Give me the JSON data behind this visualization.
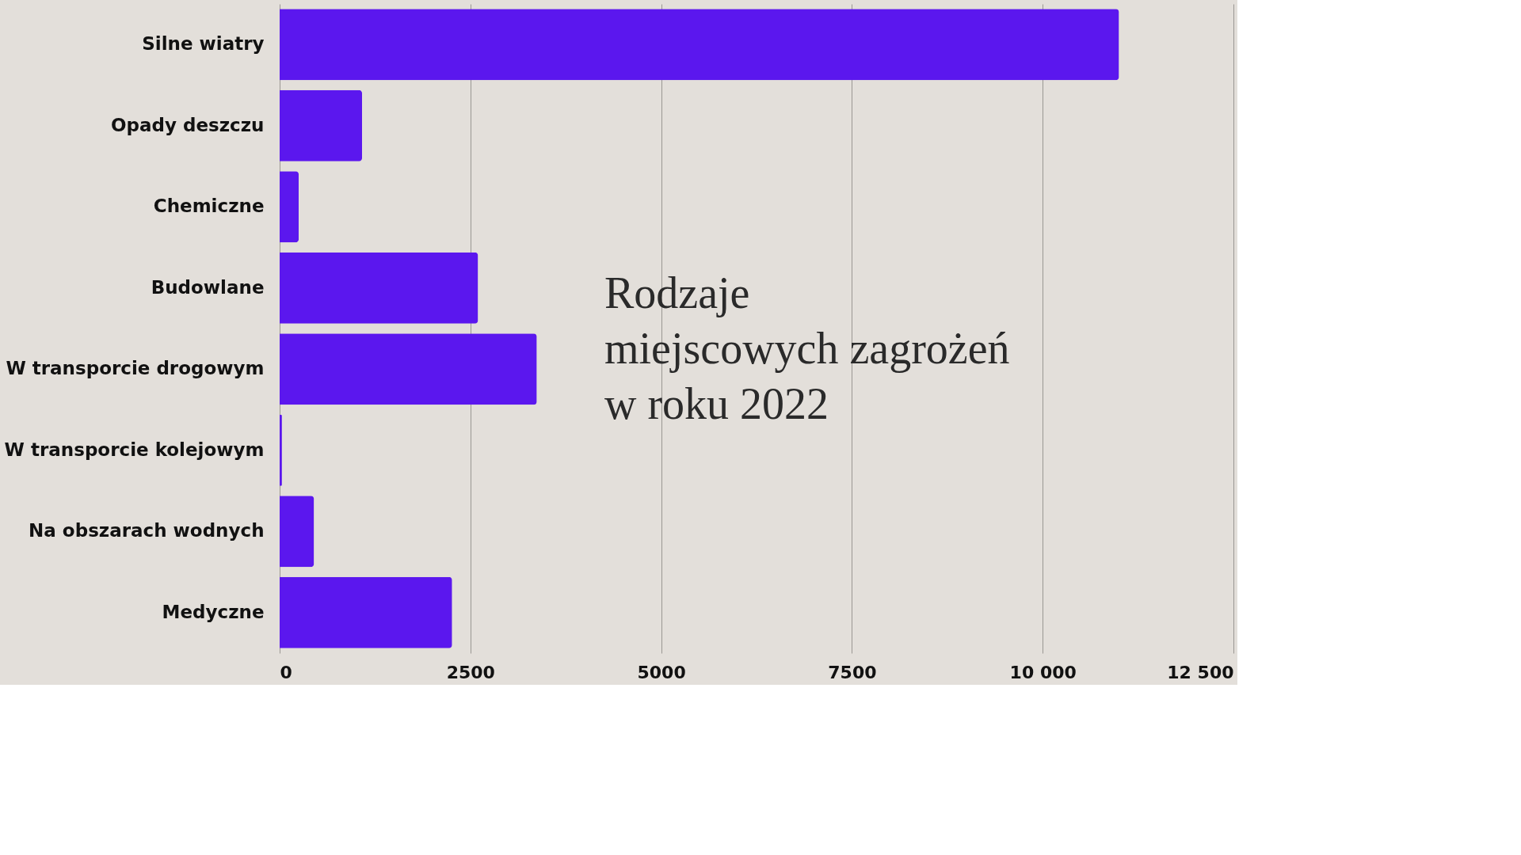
{
  "chart_data": {
    "type": "bar",
    "orientation": "horizontal",
    "title": "Rodzaje\nmiejscowych zagrożeń\nw roku 2022",
    "categories": [
      "Silne wiatry",
      "Opady deszczu",
      "Chemiczne",
      "Budowlane",
      "W transporcie drogowym",
      "W transporcie kolejowym",
      "Na obszarach wodnych",
      "Medyczne"
    ],
    "values": [
      11000,
      1080,
      250,
      2600,
      3370,
      30,
      450,
      2260
    ],
    "color": "#5b17ee",
    "xlim": [
      0,
      12500
    ],
    "xticks": [
      0,
      2500,
      5000,
      7500,
      {
        "value": 10000,
        "label": "10 000"
      },
      {
        "value": 12500,
        "label": "12 500"
      }
    ],
    "grid": "x"
  }
}
